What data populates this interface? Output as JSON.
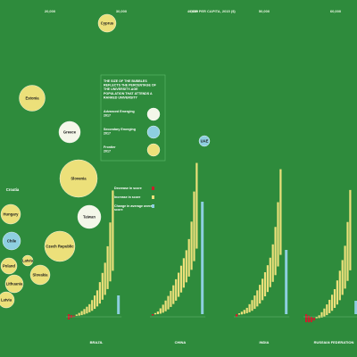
{
  "chart_data": [
    {
      "type": "scatter",
      "title": "",
      "xlabel": "GDP PER CAPITA, 2015 ($)",
      "x_ticks": [
        "20,000",
        "30,000",
        "40,000",
        "50,000",
        "60,000"
      ],
      "x_tick_values": [
        20000,
        30000,
        40000,
        50000,
        60000
      ],
      "legend": {
        "title": "THE SIZE OF THE BUBBLES REFLECTS THE PERCENTAGE OF THE UNIVERSITY-AGE POPULATION THAT ATTENDS A RANKED UNIVERSITY",
        "entries": [
          {
            "name": "Advanced Emerging 2017",
            "color": "#f4f7e9"
          },
          {
            "name": "Secondary Emerging 2017",
            "color": "#8ecfe0"
          },
          {
            "name": "Frontier 2017",
            "color": "#ece07a"
          }
        ]
      },
      "bubbles": [
        {
          "label": "Cyprus",
          "category": "Frontier 2017",
          "x": 28000,
          "size": 20
        },
        {
          "label": "Estonia",
          "category": "Frontier 2017",
          "x": 16500,
          "size": 29
        },
        {
          "label": "Greece",
          "category": "Advanced Emerging 2017",
          "x": 24000,
          "size": 24
        },
        {
          "label": "UAE",
          "category": "Secondary Emerging 2017",
          "x": 40500,
          "size": 12
        },
        {
          "label": "Slovenia",
          "category": "Frontier 2017",
          "x": 23000,
          "size": 42
        },
        {
          "label": "Croatia",
          "category": "Frontier 2017",
          "x": 12500,
          "size": 0
        },
        {
          "label": "Hungary",
          "category": "Frontier 2017",
          "x": 12500,
          "size": 22
        },
        {
          "label": "Taiwan",
          "category": "Advanced Emerging 2017",
          "x": 25500,
          "size": 26
        },
        {
          "label": "Chile",
          "category": "Secondary Emerging 2017",
          "x": 12500,
          "size": 20
        },
        {
          "label": "Czech Republic",
          "category": "Frontier 2017",
          "x": 18000,
          "size": 34
        },
        {
          "label": "Poland",
          "category": "Frontier 2017",
          "x": 12500,
          "size": 18
        },
        {
          "label": "Latvia",
          "category": "Frontier 2017",
          "x": 14000,
          "size": 12
        },
        {
          "label": "Slovakia",
          "category": "Frontier 2017",
          "x": 16000,
          "size": 22
        },
        {
          "label": "Lithuania",
          "category": "Frontier 2017",
          "x": 13000,
          "size": 20
        },
        {
          "label": "Latvia",
          "category": "Frontier 2017",
          "x": 12500,
          "size": 18
        }
      ]
    },
    {
      "type": "bar",
      "title": "",
      "legend": [
        {
          "name": "Decrease in score",
          "color": "#c8202c"
        },
        {
          "name": "Increase in score",
          "color": "#ece07a"
        },
        {
          "name": "Change in average overall score",
          "color": "#8ecfe0"
        }
      ],
      "countries": [
        {
          "name": "BRAZIL",
          "changes": [
            -2,
            -1,
            -0.5,
            0.5,
            1,
            1.5,
            2,
            2.5,
            3,
            4,
            5,
            6,
            8,
            10,
            12,
            16,
            22,
            30
          ],
          "overall": 7
        },
        {
          "name": "CHINA",
          "changes": [
            -0.5,
            0.5,
            1,
            2,
            3,
            4,
            5,
            6,
            7,
            8,
            9,
            10,
            11,
            12,
            14,
            18,
            26,
            32
          ],
          "overall": 42
        },
        {
          "name": "INDIA",
          "changes": [
            -1,
            0.5,
            1,
            1.5,
            2,
            3,
            4,
            5,
            6,
            7,
            8,
            9,
            10,
            11,
            14,
            18,
            24,
            32
          ],
          "overall": 24
        },
        {
          "name": "RUSSIAN FEDERATION",
          "changes": [
            -3,
            -2.5,
            -2,
            -1,
            0.5,
            1,
            2,
            3,
            4,
            5,
            6,
            7,
            9,
            11,
            13,
            16,
            22,
            30
          ],
          "overall": 5
        }
      ]
    }
  ]
}
